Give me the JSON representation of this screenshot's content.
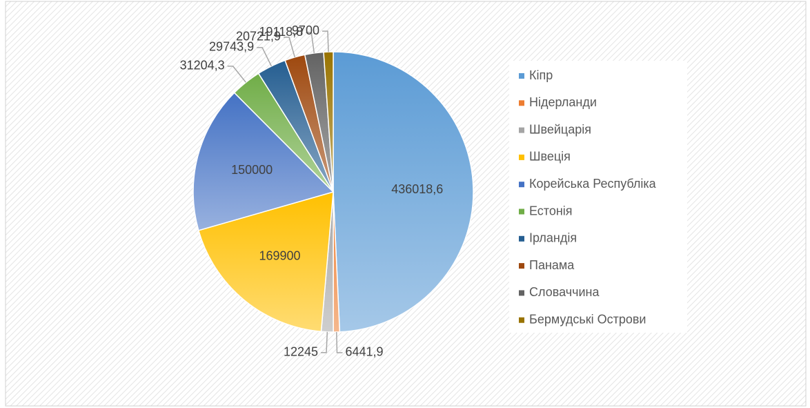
{
  "chart_data": {
    "type": "pie",
    "categories": [
      "Кіпр",
      "Нідерланди",
      "Швейцарія",
      "Швеція",
      "Корейська Республіка",
      "Естонія",
      "Ірландія",
      "Панама",
      "Словаччина",
      "Бермудські Острови"
    ],
    "values": [
      436018.6,
      6441.9,
      12245,
      169900,
      150000,
      31204.3,
      29743.9,
      20721.9,
      19118.8,
      9700
    ],
    "value_labels": [
      "436018,6",
      "6441,9",
      "12245",
      "169900",
      "150000",
      "31204,3",
      "29743,9",
      "20721,9",
      "19118,8",
      "9700"
    ],
    "colors": [
      "#5b9bd5",
      "#ed7d31",
      "#a5a5a5",
      "#ffc000",
      "#4472c4",
      "#70ad47",
      "#255e91",
      "#9e480e",
      "#636363",
      "#997300"
    ],
    "legend": "right"
  }
}
